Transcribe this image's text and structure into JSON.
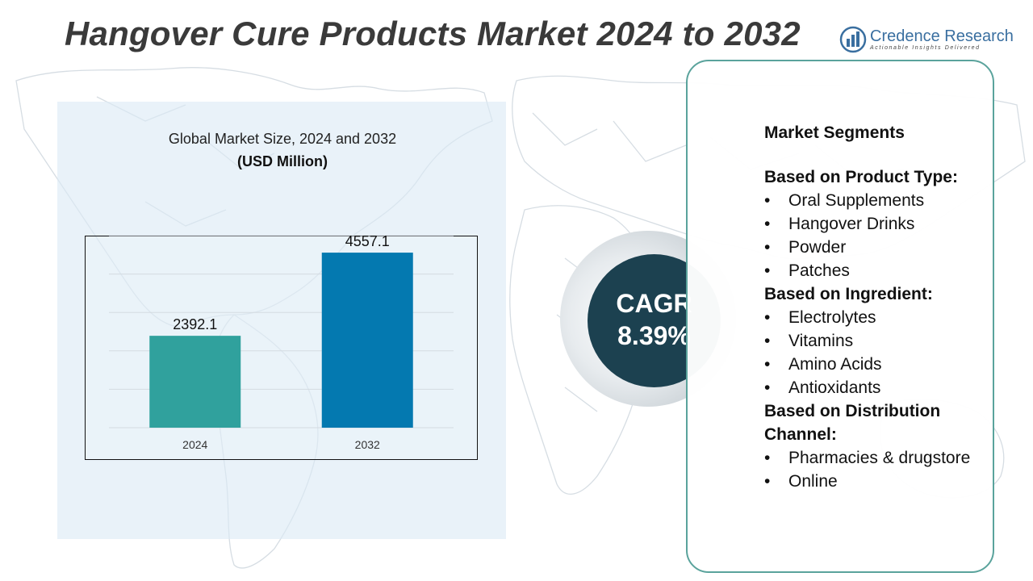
{
  "title": "Hangover Cure Products Market 2024 to 2032",
  "logo": {
    "name": "Credence Research",
    "tagline": "Actionable Insights Delivered",
    "icon": "bar-chart-logo-icon"
  },
  "chart_data": {
    "type": "bar",
    "title": "Global Market Size, 2024 and 2032",
    "subtitle": "(USD Million)",
    "categories": [
      "2024",
      "2032"
    ],
    "values": [
      2392.1,
      4557.1
    ],
    "value_labels": [
      "2392.1",
      "4557.1"
    ],
    "colors": [
      "#30a19d",
      "#0479b0"
    ],
    "ylim": [
      0,
      5000
    ],
    "grid": true,
    "legend": "none"
  },
  "cagr": {
    "label": "CAGR",
    "value": "8.39%"
  },
  "segments": {
    "heading": "Market Segments",
    "groups": [
      {
        "title": "Based on Product Type:",
        "items": [
          "Oral Supplements",
          "Hangover Drinks",
          "Powder",
          "Patches"
        ]
      },
      {
        "title": "Based on Ingredient:",
        "items": [
          "Electrolytes",
          "Vitamins",
          "Amino Acids",
          "Antioxidants"
        ]
      },
      {
        "title": "Based on Distribution Channel:",
        "items": [
          "Pharmacies & drugstore",
          "Online"
        ]
      }
    ]
  },
  "colors": {
    "accent": "#5aa39c",
    "cagr_circle": "#1c4150",
    "title_text": "#3a3a3a",
    "logo_blue": "#3a6fa0"
  }
}
